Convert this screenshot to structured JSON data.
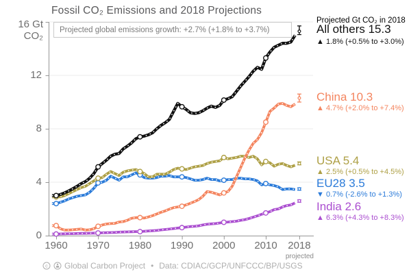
{
  "title": "Fossil CO₂ Emissions and 2018 Projections",
  "subtitle": "Projected global emissions growth: +2.7% (+1.8% to +3.7%)",
  "axis": {
    "y_unit_line1": "16 Gt",
    "y_unit_line2": "CO₂",
    "y_tick_labels": [
      "12",
      "8",
      "4",
      "0"
    ],
    "projected_note": "projected"
  },
  "legend": {
    "heading": "Projected Gt CO₂ in 2018",
    "entries": [
      {
        "label": "All others 15.3",
        "detail": "▲ 1.8% (+0.5% to +3.0%)",
        "color": "#111111"
      },
      {
        "label": "China 10.3",
        "detail": "▲ 4.7% (+2.0% to +7.4%)",
        "color": "#F4855F"
      },
      {
        "label": "USA 5.4",
        "detail": "▲ 2.5% (+0.5% to +4.5%)",
        "color": "#AEA046"
      },
      {
        "label": "EU28 3.5",
        "detail": "▼ 0.7% (-2.6% to +1.3%)",
        "color": "#2B7BD9"
      },
      {
        "label": "India 2.6",
        "detail": "▲ 6.3% (+4.3% to +8.3%)",
        "color": "#AB4FD0"
      }
    ]
  },
  "footer": {
    "attribution": "Global Carbon Project",
    "separator": "•",
    "source": "Data: CDIAC/GCP/UNFCCC/BP/USGS",
    "icons": [
      "cc-icon",
      "cc-by-icon"
    ]
  },
  "chart_data": {
    "type": "line",
    "title": "Fossil CO₂ Emissions and 2018 Projections",
    "xlabel": "",
    "ylabel": "Gt CO₂",
    "x_start": 1960,
    "x_end_actual": 2017,
    "x_projected": 2018,
    "x_ticks": [
      1960,
      1970,
      1980,
      1990,
      2000,
      2010,
      2018
    ],
    "y_ticks": [
      0,
      4,
      8,
      12,
      16
    ],
    "ylim": [
      0,
      16
    ],
    "grid": true,
    "legend_position": "right",
    "series": [
      {
        "name": "All others",
        "color": "#111111",
        "projected_2018": 15.3,
        "proj_range": [
          15.05,
          15.7
        ],
        "values": [
          3.0,
          3.08,
          3.2,
          3.35,
          3.52,
          3.7,
          3.9,
          4.05,
          4.3,
          4.65,
          5.15,
          5.4,
          5.65,
          5.95,
          6.1,
          6.15,
          6.5,
          6.7,
          6.95,
          7.25,
          7.4,
          7.45,
          7.55,
          7.7,
          8.0,
          8.25,
          8.45,
          8.7,
          9.3,
          9.9,
          9.65,
          9.45,
          9.2,
          9.15,
          9.2,
          9.35,
          9.55,
          9.7,
          9.6,
          9.75,
          10.15,
          10.25,
          10.4,
          10.8,
          11.2,
          11.55,
          11.9,
          12.3,
          12.6,
          12.45,
          13.3,
          13.75,
          14.1,
          14.25,
          14.4,
          14.4,
          14.5,
          15.0
        ]
      },
      {
        "name": "China",
        "color": "#F4855F",
        "projected_2018": 10.3,
        "proj_range": [
          10.0,
          10.6
        ],
        "values": [
          0.75,
          0.52,
          0.42,
          0.42,
          0.44,
          0.47,
          0.5,
          0.42,
          0.44,
          0.52,
          0.7,
          0.8,
          0.87,
          0.9,
          0.92,
          1.02,
          1.05,
          1.15,
          1.3,
          1.35,
          1.35,
          1.32,
          1.4,
          1.5,
          1.62,
          1.75,
          1.85,
          1.98,
          2.1,
          2.15,
          2.2,
          2.3,
          2.42,
          2.55,
          2.7,
          2.95,
          3.3,
          3.25,
          3.15,
          3.05,
          3.2,
          3.3,
          3.7,
          4.4,
          5.1,
          5.8,
          6.4,
          6.9,
          7.2,
          7.7,
          8.5,
          9.3,
          9.55,
          9.85,
          9.9,
          9.75,
          9.65,
          9.85
        ]
      },
      {
        "name": "USA",
        "color": "#AEA046",
        "projected_2018": 5.4,
        "proj_range": [
          5.3,
          5.52
        ],
        "values": [
          2.9,
          2.9,
          3.0,
          3.15,
          3.3,
          3.45,
          3.6,
          3.7,
          3.9,
          4.1,
          4.3,
          4.35,
          4.6,
          4.8,
          4.65,
          4.5,
          4.75,
          4.85,
          4.9,
          4.95,
          4.8,
          4.65,
          4.4,
          4.4,
          4.6,
          4.6,
          4.6,
          4.75,
          4.95,
          5.05,
          5.0,
          4.95,
          5.05,
          5.15,
          5.2,
          5.25,
          5.4,
          5.5,
          5.55,
          5.6,
          5.85,
          5.75,
          5.8,
          5.85,
          5.95,
          5.95,
          5.85,
          5.95,
          5.75,
          5.3,
          5.55,
          5.45,
          5.2,
          5.35,
          5.4,
          5.25,
          5.15,
          5.27
        ]
      },
      {
        "name": "EU28",
        "color": "#2B7BD9",
        "projected_2018": 3.5,
        "proj_range": [
          3.4,
          3.58
        ],
        "values": [
          2.4,
          2.5,
          2.6,
          2.75,
          2.85,
          2.95,
          3.0,
          3.05,
          3.25,
          3.55,
          3.95,
          4.0,
          4.15,
          4.45,
          4.3,
          4.15,
          4.4,
          4.4,
          4.55,
          4.7,
          4.55,
          4.35,
          4.3,
          4.3,
          4.35,
          4.45,
          4.45,
          4.5,
          4.4,
          4.4,
          4.4,
          4.35,
          4.25,
          4.15,
          4.15,
          4.2,
          4.3,
          4.2,
          4.2,
          4.1,
          4.15,
          4.2,
          4.2,
          4.3,
          4.3,
          4.25,
          4.25,
          4.2,
          4.1,
          3.8,
          3.9,
          3.8,
          3.75,
          3.65,
          3.45,
          3.5,
          3.5,
          3.45
        ]
      },
      {
        "name": "India",
        "color": "#AB4FD0",
        "projected_2018": 2.6,
        "proj_range": [
          2.5,
          2.68
        ],
        "values": [
          0.12,
          0.13,
          0.14,
          0.15,
          0.15,
          0.16,
          0.17,
          0.17,
          0.18,
          0.19,
          0.2,
          0.21,
          0.22,
          0.23,
          0.24,
          0.26,
          0.27,
          0.28,
          0.29,
          0.3,
          0.3,
          0.33,
          0.35,
          0.37,
          0.39,
          0.43,
          0.46,
          0.49,
          0.53,
          0.57,
          0.6,
          0.64,
          0.68,
          0.7,
          0.74,
          0.8,
          0.85,
          0.88,
          0.9,
          0.95,
          1.0,
          1.02,
          1.05,
          1.08,
          1.15,
          1.2,
          1.28,
          1.38,
          1.48,
          1.6,
          1.7,
          1.8,
          1.95,
          2.0,
          2.15,
          2.25,
          2.3,
          2.45
        ]
      }
    ]
  }
}
